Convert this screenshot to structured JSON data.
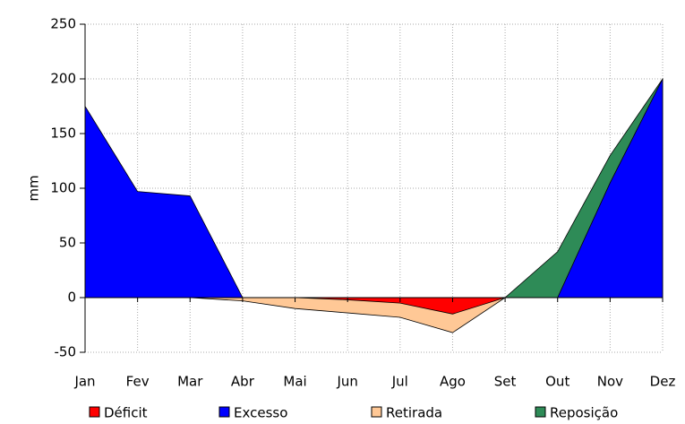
{
  "chart_data": {
    "type": "area",
    "y_label": "mm",
    "categories": [
      "Jan",
      "Fev",
      "Mar",
      "Abr",
      "Mai",
      "Jun",
      "Jul",
      "Ago",
      "Set",
      "Out",
      "Nov",
      "Dez"
    ],
    "series": [
      {
        "name": "Déficit",
        "color": "#ff0000",
        "values": [
          0,
          0,
          0,
          0,
          0,
          -2,
          -5,
          -15,
          0,
          0,
          0,
          0
        ]
      },
      {
        "name": "Excesso",
        "color": "#0000ff",
        "values": [
          175,
          97,
          93,
          0,
          0,
          0,
          0,
          0,
          0,
          0,
          105,
          200
        ]
      },
      {
        "name": "Retirada",
        "color": "#ffc896",
        "values": [
          0,
          0,
          0,
          -3,
          -10,
          -14,
          -18,
          -32,
          0,
          0,
          0,
          0
        ]
      },
      {
        "name": "Reposição",
        "color": "#2e8b57",
        "values": [
          0,
          0,
          0,
          0,
          0,
          0,
          0,
          0,
          0,
          42,
          130,
          200
        ]
      }
    ],
    "ylim": [
      -50,
      250
    ],
    "yticks": [
      -50,
      0,
      50,
      100,
      150,
      200,
      250
    ],
    "grid": true
  }
}
